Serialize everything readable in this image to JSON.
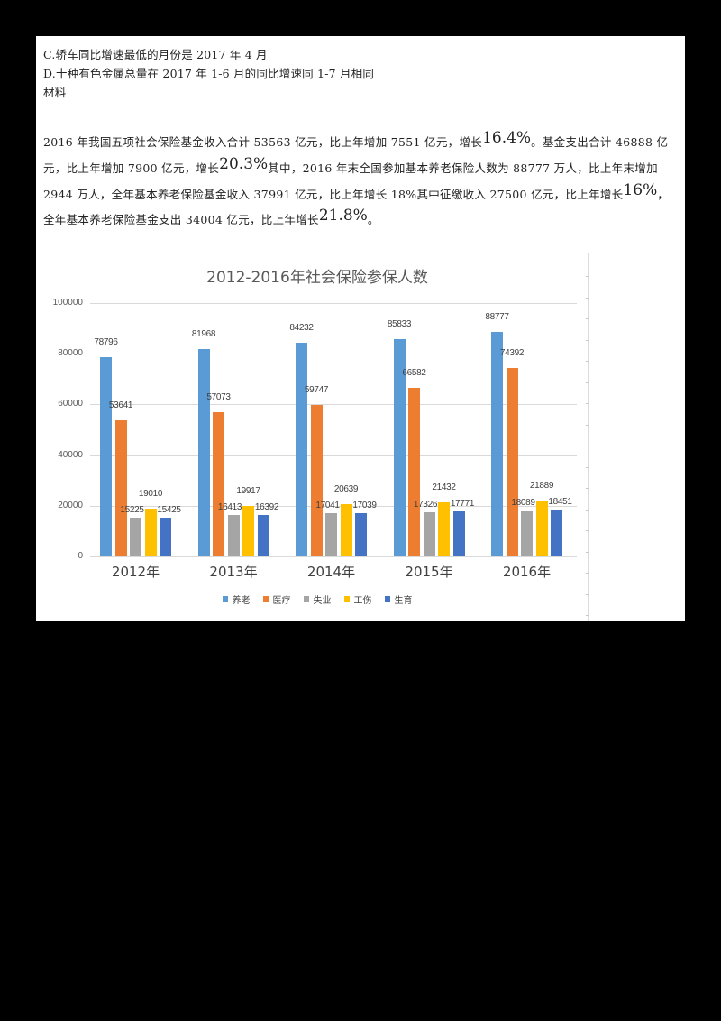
{
  "options": [
    {
      "label": "C.轿车同比增速最低的月份是 2017 年 4 月"
    },
    {
      "label": "D.十种有色金属总量在 2017 年 1-6 月的同比增速同 1-7 月相同"
    }
  ],
  "section_label": "材料",
  "paragraph": {
    "line1": {
      "pre": "2016 年我国五项社会保险基金收入合计 53563 亿元，比上年增加 7551 亿元，增长",
      "pct": "16.4%",
      "post": "。基金支出合计 46888 亿"
    },
    "line2": {
      "pre": "元，比上年增加 7900 亿元，增长",
      "pct": "20.3%",
      "post": "其中，2016 年末全国参加基本养老保险人数为 88777 万人，比上年末增加"
    },
    "line3": {
      "pre": "2944 万人，全年基本养老保险基金收入 37991 亿元，比上年增长 18%其中征缴收入 27500 亿元，比上年增长",
      "pct": "16%",
      "post": "，"
    },
    "line4": {
      "pre": "全年基本养老保险基金支出 34004 亿元，比上年增长",
      "pct": "21.8%",
      "post": "。"
    }
  },
  "colors": {
    "养老": "#5B9BD5",
    "医疗": "#ED7D31",
    "失业": "#A5A5A5",
    "工伤": "#FFC000",
    "生育": "#4472C4"
  },
  "chart_data": {
    "type": "bar",
    "title": "2012-2016年社会保险参保人数",
    "xlabel": "",
    "ylabel": "",
    "ylim": [
      0,
      100000
    ],
    "yticks": [
      "100000",
      "80000",
      "60000",
      "40000",
      "20000",
      "0"
    ],
    "grid": true,
    "legend_position": "bottom",
    "categories": [
      "2012年",
      "2013年",
      "2014年",
      "2015年",
      "2016年"
    ],
    "series": [
      {
        "name": "养老",
        "color": "#5B9BD5",
        "values": [
          78796,
          81968,
          84232,
          85833,
          88777
        ]
      },
      {
        "name": "医疗",
        "color": "#ED7D31",
        "values": [
          53641,
          57073,
          59747,
          66582,
          74392
        ]
      },
      {
        "name": "失业",
        "color": "#A5A5A5",
        "values": [
          15225,
          16413,
          17041,
          17326,
          18089
        ]
      },
      {
        "name": "工伤",
        "color": "#FFC000",
        "values": [
          19010,
          19917,
          20639,
          21432,
          21889
        ]
      },
      {
        "name": "生育",
        "color": "#4472C4",
        "values": [
          15425,
          16392,
          17039,
          17771,
          18451
        ]
      }
    ]
  }
}
